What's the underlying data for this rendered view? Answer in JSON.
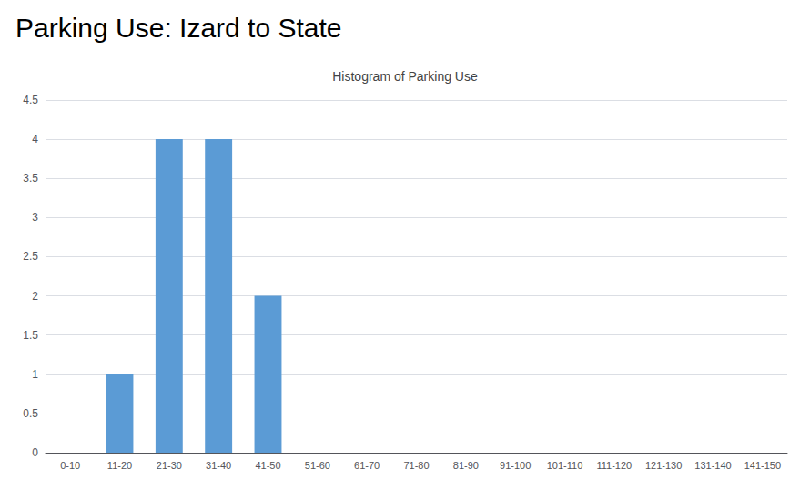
{
  "chart_data": {
    "type": "bar",
    "title": "Parking Use: Izard to State",
    "subtitle": "Histogram of Parking Use",
    "categories": [
      "0-10",
      "11-20",
      "21-30",
      "31-40",
      "41-50",
      "51-60",
      "61-70",
      "71-80",
      "81-90",
      "91-100",
      "101-110",
      "111-120",
      "121-130",
      "131-140",
      "141-150"
    ],
    "values": [
      0,
      1,
      4,
      4,
      2,
      0,
      0,
      0,
      0,
      0,
      0,
      0,
      0,
      0,
      0
    ],
    "color": "#5B9BD5",
    "ylim": [
      0,
      4.5
    ],
    "yticks": [
      0,
      0.5,
      1,
      1.5,
      2,
      2.5,
      3,
      3.5,
      4,
      4.5
    ],
    "grid": true
  }
}
